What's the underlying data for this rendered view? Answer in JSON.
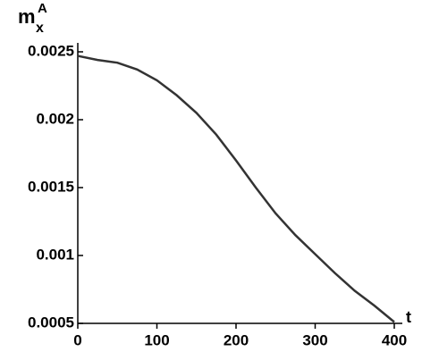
{
  "chart_data": {
    "type": "line",
    "y_label": "m",
    "y_label_sub": "x",
    "y_label_sup": "A",
    "x_label": "t",
    "x": [
      0,
      25,
      50,
      75,
      100,
      125,
      150,
      175,
      200,
      225,
      250,
      275,
      300,
      325,
      350,
      375,
      400
    ],
    "values": [
      0.00247,
      0.00244,
      0.00242,
      0.00237,
      0.00229,
      0.00218,
      0.00205,
      0.00189,
      0.0017,
      0.0015,
      0.00131,
      0.00115,
      0.00101,
      0.00087,
      0.00074,
      0.00063,
      0.00051
    ],
    "color": "#333333",
    "xlim": [
      0,
      400
    ],
    "xticks": [
      0,
      100,
      200,
      300,
      400
    ],
    "ylim": [
      0.0005,
      0.0025
    ],
    "yticks": [
      0.0005,
      0.001,
      0.0015,
      0.002,
      0.0025
    ],
    "grid": false
  }
}
